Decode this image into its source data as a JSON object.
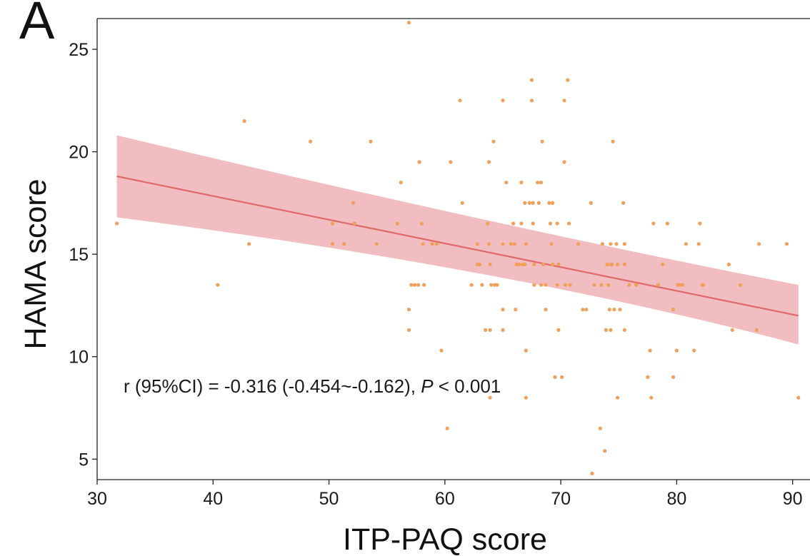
{
  "panel_label": "A",
  "colors": {
    "points": "#f0a05a",
    "line": "#e06868",
    "band": "#eeb2b5",
    "axis": "#222222"
  },
  "chart_data": {
    "type": "scatter",
    "xlabel": "ITP-PAQ score",
    "ylabel": "HAMA score",
    "xlim": [
      30,
      91.5
    ],
    "ylim": [
      4,
      26.5
    ],
    "xticks": [
      30,
      40,
      50,
      60,
      70,
      80,
      90
    ],
    "yticks": [
      5,
      10,
      15,
      20,
      25
    ],
    "grid": false,
    "annotation": {
      "prefix": "r (95%CI) = -0.316 (-0.454~-0.162), ",
      "p_symbol": "P",
      "suffix": " < 0.001"
    },
    "regression": {
      "x": [
        31.7,
        90.5
      ],
      "y": [
        18.8,
        12.0
      ],
      "ci_upper": [
        20.8,
        13.5
      ],
      "ci_lower": [
        16.8,
        10.6
      ],
      "ci_mid": {
        "x": 65.5,
        "upper": 15.9,
        "lower": 14.7
      }
    },
    "points": [
      [
        31.7,
        16.5
      ],
      [
        40.4,
        13.5
      ],
      [
        42.7,
        21.5
      ],
      [
        43.1,
        15.5
      ],
      [
        48.4,
        20.5
      ],
      [
        50.3,
        16.5
      ],
      [
        50.3,
        15.5
      ],
      [
        51.3,
        15.5
      ],
      [
        52.1,
        17.5
      ],
      [
        52.2,
        16.5
      ],
      [
        53.6,
        20.5
      ],
      [
        54.1,
        15.5
      ],
      [
        55.9,
        16.5
      ],
      [
        56.2,
        18.5
      ],
      [
        56.9,
        26.3
      ],
      [
        56.9,
        12.3
      ],
      [
        56.9,
        11.3
      ],
      [
        57.1,
        13.5
      ],
      [
        57.4,
        13.5
      ],
      [
        57.7,
        13.5
      ],
      [
        57.8,
        19.5
      ],
      [
        58.0,
        16.5
      ],
      [
        58.1,
        15.5
      ],
      [
        58.2,
        13.5
      ],
      [
        58.9,
        15.5
      ],
      [
        59.3,
        15.5
      ],
      [
        59.7,
        10.3
      ],
      [
        60.2,
        6.5
      ],
      [
        60.5,
        19.5
      ],
      [
        61.3,
        22.5
      ],
      [
        61.5,
        17.5
      ],
      [
        62.3,
        13.5
      ],
      [
        62.8,
        15.5
      ],
      [
        62.8,
        14.5
      ],
      [
        63.0,
        14.5
      ],
      [
        63.2,
        13.5
      ],
      [
        63.5,
        11.3
      ],
      [
        63.7,
        16.5
      ],
      [
        63.8,
        19.5
      ],
      [
        63.8,
        15.5
      ],
      [
        63.9,
        14.5
      ],
      [
        63.9,
        11.3
      ],
      [
        63.9,
        8.0
      ],
      [
        64.0,
        13.5
      ],
      [
        64.2,
        20.5
      ],
      [
        64.3,
        13.5
      ],
      [
        64.5,
        13.5
      ],
      [
        65.0,
        22.5
      ],
      [
        65.0,
        15.5
      ],
      [
        65.0,
        12.3
      ],
      [
        65.0,
        11.3
      ],
      [
        65.3,
        18.5
      ],
      [
        65.7,
        15.5
      ],
      [
        65.9,
        16.5
      ],
      [
        66.0,
        15.5
      ],
      [
        66.1,
        12.3
      ],
      [
        66.2,
        14.5
      ],
      [
        66.4,
        14.5
      ],
      [
        66.6,
        18.5
      ],
      [
        66.6,
        16.5
      ],
      [
        66.7,
        14.5
      ],
      [
        66.9,
        17.5
      ],
      [
        66.9,
        14.5
      ],
      [
        67.0,
        15.5
      ],
      [
        67.0,
        10.3
      ],
      [
        67.0,
        8.0
      ],
      [
        67.3,
        17.5
      ],
      [
        67.5,
        22.5
      ],
      [
        67.5,
        23.5
      ],
      [
        67.6,
        17.5
      ],
      [
        67.6,
        16.5
      ],
      [
        67.7,
        14.5
      ],
      [
        67.7,
        13.5
      ],
      [
        68.0,
        18.5
      ],
      [
        68.1,
        17.5
      ],
      [
        68.3,
        18.5
      ],
      [
        68.3,
        13.5
      ],
      [
        68.4,
        20.5
      ],
      [
        68.5,
        14.5
      ],
      [
        68.7,
        12.3
      ],
      [
        68.7,
        13.5
      ],
      [
        69.0,
        17.5
      ],
      [
        69.1,
        16.5
      ],
      [
        69.2,
        15.5
      ],
      [
        69.3,
        17.5
      ],
      [
        69.3,
        14.5
      ],
      [
        69.5,
        9.0
      ],
      [
        69.7,
        16.5
      ],
      [
        69.7,
        13.5
      ],
      [
        69.8,
        14.5
      ],
      [
        69.8,
        11.3
      ],
      [
        70.1,
        9.0
      ],
      [
        70.3,
        22.5
      ],
      [
        70.3,
        19.5
      ],
      [
        70.4,
        13.5
      ],
      [
        70.6,
        23.5
      ],
      [
        70.7,
        16.5
      ],
      [
        70.8,
        13.5
      ],
      [
        71.5,
        15.5
      ],
      [
        71.9,
        12.3
      ],
      [
        72.2,
        12.3
      ],
      [
        72.6,
        17.5
      ],
      [
        72.7,
        4.3
      ],
      [
        72.9,
        13.5
      ],
      [
        73.4,
        6.5
      ],
      [
        73.5,
        13.5
      ],
      [
        73.6,
        15.5
      ],
      [
        73.8,
        5.4
      ],
      [
        73.9,
        11.3
      ],
      [
        74.0,
        14.5
      ],
      [
        74.1,
        13.5
      ],
      [
        74.2,
        12.3
      ],
      [
        74.3,
        15.5
      ],
      [
        74.3,
        14.5
      ],
      [
        74.3,
        11.3
      ],
      [
        74.4,
        14.5
      ],
      [
        74.5,
        20.5
      ],
      [
        74.6,
        12.3
      ],
      [
        74.8,
        15.5
      ],
      [
        74.9,
        14.5
      ],
      [
        74.9,
        8.0
      ],
      [
        75.1,
        12.3
      ],
      [
        75.4,
        17.5
      ],
      [
        75.5,
        15.5
      ],
      [
        75.5,
        14.5
      ],
      [
        75.5,
        11.3
      ],
      [
        75.9,
        13.5
      ],
      [
        76.5,
        13.5
      ],
      [
        77.5,
        9.0
      ],
      [
        77.7,
        10.3
      ],
      [
        77.8,
        8.0
      ],
      [
        78.0,
        16.5
      ],
      [
        78.4,
        13.5
      ],
      [
        78.8,
        14.5
      ],
      [
        79.2,
        16.5
      ],
      [
        79.7,
        12.3
      ],
      [
        79.7,
        9.0
      ],
      [
        80.0,
        10.3
      ],
      [
        80.1,
        13.5
      ],
      [
        80.3,
        13.5
      ],
      [
        80.5,
        13.5
      ],
      [
        80.8,
        15.5
      ],
      [
        81.5,
        10.3
      ],
      [
        81.9,
        15.5
      ],
      [
        82.0,
        16.5
      ],
      [
        82.2,
        13.5
      ],
      [
        82.3,
        13.5
      ],
      [
        84.5,
        14.5
      ],
      [
        84.8,
        11.3
      ],
      [
        85.5,
        13.5
      ],
      [
        86.9,
        11.3
      ],
      [
        87.1,
        15.5
      ],
      [
        89.5,
        15.5
      ],
      [
        90.5,
        8.0
      ]
    ]
  }
}
